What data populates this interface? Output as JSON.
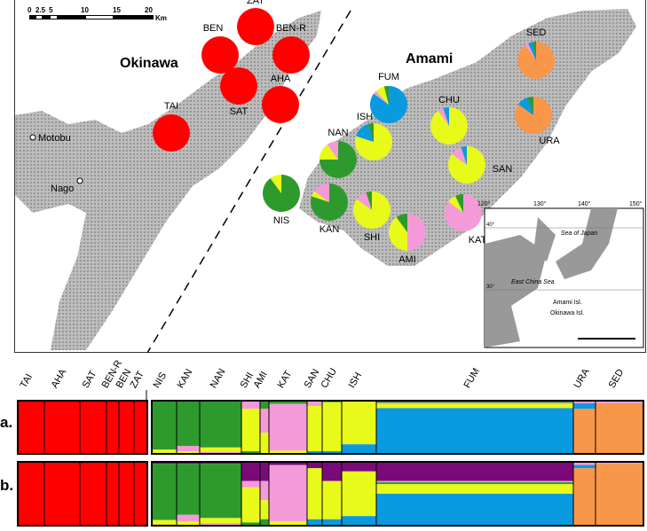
{
  "map": {
    "scale_ticks": [
      "0",
      "2.5",
      "5",
      "10",
      "15",
      "20"
    ],
    "scale_unit": "Km",
    "region_labels": {
      "okinawa": "Okinawa",
      "amami": "Amami"
    },
    "towns": [
      "Motobu",
      "Nago"
    ],
    "inset": {
      "lon_ticks": [
        "120°",
        "130°",
        "140°",
        "150°"
      ],
      "lat_ticks": [
        "40°",
        "30°"
      ],
      "seas": [
        "Sea of Japan",
        "East China Sea"
      ],
      "legend": [
        "Amami Isl.",
        "Okinawa Isl."
      ]
    }
  },
  "colors": {
    "red": "#ff0000",
    "green": "#2e9a2e",
    "yellow": "#e8fa1a",
    "pink": "#f59ad8",
    "blue": "#0a9ae0",
    "orange": "#f8964a",
    "purple": "#7a0a7a"
  },
  "pies": [
    {
      "name": "ZAT",
      "comp": {
        "red": 100
      }
    },
    {
      "name": "BEN",
      "comp": {
        "red": 100
      }
    },
    {
      "name": "BEN-R",
      "comp": {
        "red": 100
      }
    },
    {
      "name": "SAT",
      "comp": {
        "red": 100
      }
    },
    {
      "name": "AHA",
      "comp": {
        "red": 100
      }
    },
    {
      "name": "TAI",
      "comp": {
        "red": 100
      }
    },
    {
      "name": "FUM",
      "comp": {
        "blue": 85,
        "pink": 3,
        "yellow": 8,
        "green": 4
      }
    },
    {
      "name": "SED",
      "comp": {
        "orange": 90,
        "pink": 3,
        "blue": 4,
        "green": 3
      }
    },
    {
      "name": "URA",
      "comp": {
        "orange": 85,
        "blue": 10,
        "green": 5
      }
    },
    {
      "name": "ISH",
      "comp": {
        "yellow": 80,
        "blue": 15,
        "green": 5
      }
    },
    {
      "name": "CHU",
      "comp": {
        "yellow": 90,
        "pink": 5,
        "blue": 5
      }
    },
    {
      "name": "NAN",
      "comp": {
        "green": 75,
        "yellow": 15,
        "pink": 10
      }
    },
    {
      "name": "SAN",
      "comp": {
        "yellow": 85,
        "pink": 10,
        "blue": 5
      }
    },
    {
      "name": "NIS",
      "comp": {
        "green": 90,
        "yellow": 10
      }
    },
    {
      "name": "KAN",
      "comp": {
        "green": 80,
        "yellow": 5,
        "pink": 15
      }
    },
    {
      "name": "SHI",
      "comp": {
        "yellow": 85,
        "pink": 10,
        "green": 5
      }
    },
    {
      "name": "AMI",
      "comp": {
        "pink": 50,
        "yellow": 40,
        "green": 10
      }
    },
    {
      "name": "KAT",
      "comp": {
        "pink": 85,
        "yellow": 8,
        "green": 7
      }
    }
  ],
  "structure": {
    "row_labels": [
      "a.",
      "b."
    ],
    "populations": [
      "TAI",
      "AHA",
      "SAT",
      "BEN-R",
      "BEN",
      "ZAT",
      "NIS",
      "KAN",
      "NAN",
      "SHI",
      "AMI",
      "KAT",
      "SAN",
      "CHU",
      "ISH",
      "FUM",
      "URA",
      "SED"
    ],
    "a": {
      "TAI": {
        "red": 100
      },
      "AHA": {
        "red": 100
      },
      "SAT": {
        "red": 100
      },
      "BEN-R": {
        "red": 100
      },
      "BEN": {
        "red": 100
      },
      "ZAT": {
        "red": 100
      },
      "NIS": {
        "green": 92,
        "yellow": 6,
        "orange": 2
      },
      "KAN": {
        "green": 85,
        "pink": 10,
        "yellow": 5
      },
      "NAN": {
        "green": 88,
        "yellow": 8,
        "pink": 4
      },
      "SHI": {
        "pink": 15,
        "yellow": 80,
        "green": 5
      },
      "AMI": {
        "green": 15,
        "pink": 45,
        "yellow": 40
      },
      "KAT": {
        "green": 6,
        "pink": 88,
        "yellow": 6
      },
      "SAN": {
        "pink": 10,
        "yellow": 85,
        "blue": 5
      },
      "CHU": {
        "green": 3,
        "yellow": 92,
        "blue": 5
      },
      "ISH": {
        "green": 2,
        "yellow": 80,
        "blue": 18
      },
      "FUM": {
        "green": 4,
        "pink": 2,
        "yellow": 8,
        "blue": 86
      },
      "URA": {
        "pink": 5,
        "blue": 10,
        "orange": 85
      },
      "SED": {
        "green": 2,
        "pink": 3,
        "orange": 95
      }
    },
    "b": {
      "TAI": {
        "red": 100
      },
      "AHA": {
        "red": 100
      },
      "SAT": {
        "red": 100
      },
      "BEN-R": {
        "red": 100
      },
      "BEN": {
        "red": 100
      },
      "ZAT": {
        "red": 100
      },
      "NIS": {
        "purple": 3,
        "green": 88,
        "yellow": 7,
        "orange": 2
      },
      "KAN": {
        "purple": 3,
        "green": 80,
        "pink": 10,
        "yellow": 7
      },
      "NAN": {
        "purple": 3,
        "green": 85,
        "yellow": 8,
        "pink": 4
      },
      "SHI": {
        "purple": 30,
        "pink": 10,
        "yellow": 55,
        "green": 5
      },
      "AMI": {
        "purple": 30,
        "pink": 30,
        "yellow": 30,
        "green": 10
      },
      "KAT": {
        "purple": 5,
        "pink": 88,
        "yellow": 7
      },
      "SAN": {
        "purple": 10,
        "yellow": 80,
        "blue": 10
      },
      "CHU": {
        "purple": 30,
        "yellow": 60,
        "blue": 10
      },
      "ISH": {
        "purple": 15,
        "yellow": 70,
        "blue": 15
      },
      "FUM": {
        "purple": 30,
        "pink": 2,
        "green": 3,
        "yellow": 15,
        "blue": 50
      },
      "URA": {
        "pink": 5,
        "blue": 5,
        "orange": 90
      },
      "SED": {
        "pink": 3,
        "orange": 97
      }
    }
  }
}
